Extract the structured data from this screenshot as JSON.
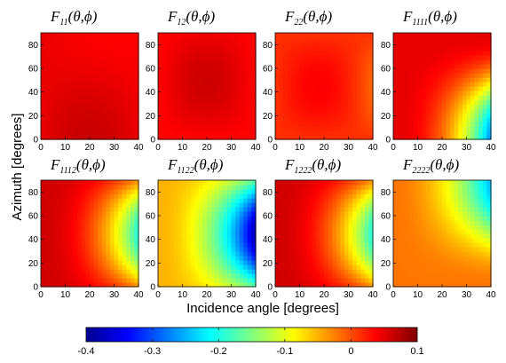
{
  "chart_data": {
    "type": "heatmap",
    "xlabel": "Incidence angle [degrees]",
    "ylabel": "Azimuth [degrees]",
    "colorbar": {
      "colormap": "jet",
      "range": [
        -0.4,
        0.1
      ],
      "ticks": [
        "-0.4",
        "-0.3",
        "-0.2",
        "-0.1",
        "0",
        "0.1"
      ]
    },
    "panels": [
      {
        "name": "F11",
        "x_range": [
          0,
          40
        ],
        "y_range": [
          0,
          90
        ],
        "x_ticks": [
          "0",
          "10",
          "20",
          "30",
          "40"
        ],
        "y_ticks": [
          "0",
          "20",
          "40",
          "60",
          "80"
        ],
        "value_range": [
          0.02,
          0.07
        ]
      },
      {
        "name": "F12",
        "x_range": [
          0,
          40
        ],
        "y_range": [
          0,
          90
        ],
        "x_ticks": [
          "0",
          "10",
          "20",
          "30",
          "40"
        ],
        "y_ticks": [
          "0",
          "20",
          "40",
          "60",
          "80"
        ],
        "value_range": [
          0.02,
          0.07
        ]
      },
      {
        "name": "F22",
        "x_range": [
          0,
          40
        ],
        "y_range": [
          0,
          90
        ],
        "x_ticks": [
          "0",
          "10",
          "20",
          "30",
          "40"
        ],
        "y_ticks": [
          "0",
          "20",
          "40",
          "60",
          "80"
        ],
        "value_range": [
          -0.03,
          0.05
        ]
      },
      {
        "name": "F1111",
        "x_range": [
          0,
          40
        ],
        "y_range": [
          0,
          90
        ],
        "x_ticks": [
          "0",
          "10",
          "20",
          "30",
          "40"
        ],
        "y_ticks": [
          "0",
          "20",
          "40",
          "60",
          "80"
        ],
        "value_range": [
          -0.27,
          0.05
        ]
      },
      {
        "name": "F1112",
        "x_range": [
          0,
          40
        ],
        "y_range": [
          0,
          90
        ],
        "x_ticks": [
          "0",
          "10",
          "20",
          "30",
          "40"
        ],
        "y_ticks": [
          "0",
          "20",
          "40",
          "60",
          "80"
        ],
        "value_range": [
          -0.2,
          0.06
        ]
      },
      {
        "name": "F1122",
        "x_range": [
          0,
          40
        ],
        "y_range": [
          0,
          90
        ],
        "x_ticks": [
          "0",
          "10",
          "20",
          "30",
          "40"
        ],
        "y_ticks": [
          "0",
          "20",
          "40",
          "60",
          "80"
        ],
        "value_range": [
          -0.38,
          -0.05
        ]
      },
      {
        "name": "F1222",
        "x_range": [
          0,
          40
        ],
        "y_range": [
          0,
          90
        ],
        "x_ticks": [
          "0",
          "10",
          "20",
          "30",
          "40"
        ],
        "y_ticks": [
          "0",
          "20",
          "40",
          "60",
          "80"
        ],
        "value_range": [
          -0.2,
          0.06
        ]
      },
      {
        "name": "F2222",
        "x_range": [
          0,
          40
        ],
        "y_range": [
          0,
          90
        ],
        "x_ticks": [
          "0",
          "10",
          "20",
          "30",
          "40"
        ],
        "y_ticks": [
          "0",
          "20",
          "40",
          "60",
          "80"
        ],
        "value_range": [
          -0.25,
          -0.02
        ]
      }
    ]
  }
}
